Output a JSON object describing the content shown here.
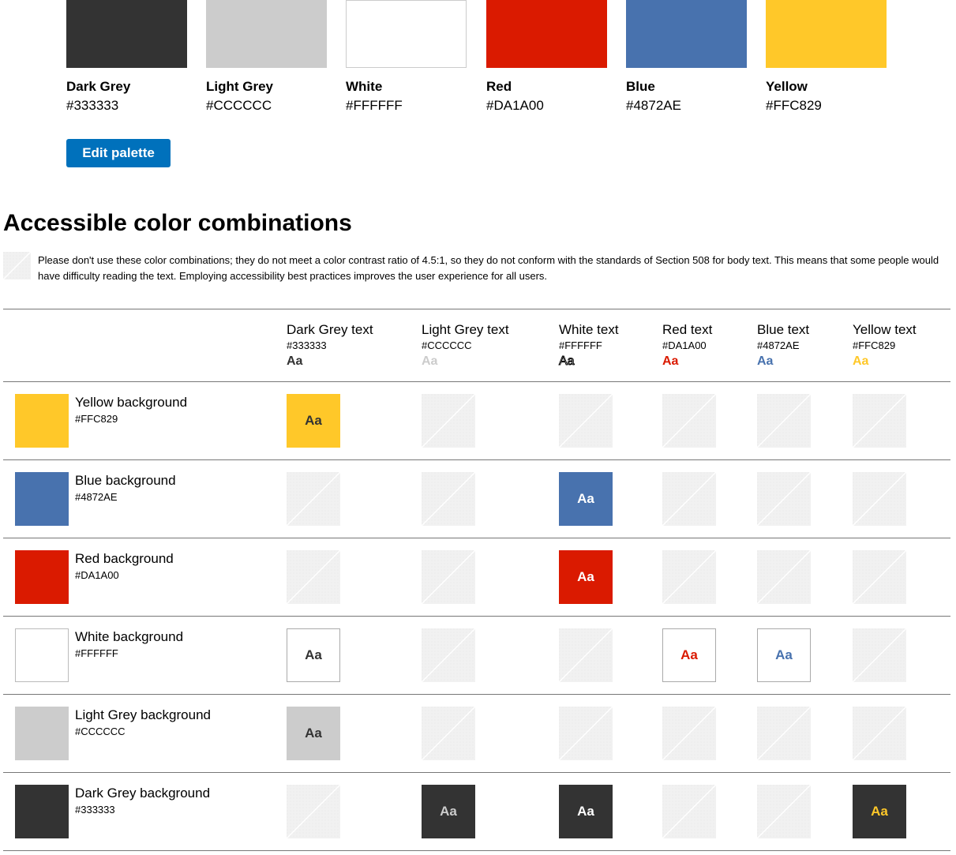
{
  "palette": [
    {
      "name": "Dark Grey",
      "hex": "#333333",
      "color": "#333333"
    },
    {
      "name": "Light Grey",
      "hex": "#CCCCCC",
      "color": "#CCCCCC"
    },
    {
      "name": "White",
      "hex": "#FFFFFF",
      "color": "#FFFFFF"
    },
    {
      "name": "Red",
      "hex": "#DA1A00",
      "color": "#DA1A00"
    },
    {
      "name": "Blue",
      "hex": "#4872AE",
      "color": "#4872AE"
    },
    {
      "name": "Yellow",
      "hex": "#FFC829",
      "color": "#FFC829"
    }
  ],
  "edit_button": "Edit palette",
  "section_title": "Accessible color combinations",
  "legend_text": "Please don't use these color combinations; they do not meet a color contrast ratio of 4.5:1, so they do not conform with the standards of Section 508 for body text. This means that some people would have difficulty reading the text. Employing accessibility best practices improves the user experience for all users.",
  "legend_icon": "not-accessible-pattern-icon",
  "sample_text": "Aa",
  "text_columns": [
    {
      "name": "Dark Grey text",
      "hex": "#333333",
      "color": "#333333"
    },
    {
      "name": "Light Grey text",
      "hex": "#CCCCCC",
      "color": "#CCCCCC"
    },
    {
      "name": "White text",
      "hex": "#FFFFFF",
      "color": "#FFFFFF"
    },
    {
      "name": "Red text",
      "hex": "#DA1A00",
      "color": "#DA1A00"
    },
    {
      "name": "Blue text",
      "hex": "#4872AE",
      "color": "#4872AE"
    },
    {
      "name": "Yellow text",
      "hex": "#FFC829",
      "color": "#FFC829"
    }
  ],
  "background_rows": [
    {
      "name": "Yellow background",
      "hex": "#FFC829",
      "color": "#FFC829",
      "accessible": [
        true,
        false,
        false,
        false,
        false,
        false
      ]
    },
    {
      "name": "Blue background",
      "hex": "#4872AE",
      "color": "#4872AE",
      "accessible": [
        false,
        false,
        true,
        false,
        false,
        false
      ]
    },
    {
      "name": "Red background",
      "hex": "#DA1A00",
      "color": "#DA1A00",
      "accessible": [
        false,
        false,
        true,
        false,
        false,
        false
      ]
    },
    {
      "name": "White background",
      "hex": "#FFFFFF",
      "color": "#FFFFFF",
      "accessible": [
        true,
        false,
        false,
        true,
        true,
        false
      ]
    },
    {
      "name": "Light Grey background",
      "hex": "#CCCCCC",
      "color": "#CCCCCC",
      "accessible": [
        true,
        false,
        false,
        false,
        false,
        false
      ]
    },
    {
      "name": "Dark Grey background",
      "hex": "#333333",
      "color": "#333333",
      "accessible": [
        false,
        true,
        true,
        false,
        false,
        true
      ]
    }
  ]
}
